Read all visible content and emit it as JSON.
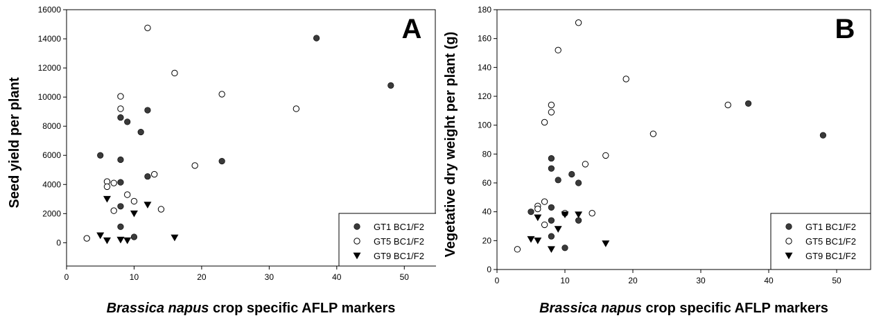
{
  "chart_data": [
    {
      "type": "scatter",
      "panel_letter": "A",
      "xlabel_italic": "Brassica napus",
      "xlabel_rest": " crop specific AFLP markers",
      "ylabel": "Seed yield per plant",
      "xlim": [
        0,
        55
      ],
      "ylim": [
        -1600,
        16000
      ],
      "xticks": [
        0,
        10,
        20,
        30,
        40,
        50
      ],
      "yticks": [
        0,
        2000,
        4000,
        6000,
        8000,
        10000,
        12000,
        14000,
        16000
      ],
      "grid": false,
      "legend_position": "bottom-right",
      "series": [
        {
          "name": "GT1 BC1/F2",
          "marker": "filled-circle",
          "points": [
            [
              5,
              6000
            ],
            [
              8,
              8600
            ],
            [
              8,
              5700
            ],
            [
              8,
              4150
            ],
            [
              8,
              2500
            ],
            [
              8,
              1100
            ],
            [
              9,
              8300
            ],
            [
              10,
              400
            ],
            [
              11,
              7600
            ],
            [
              12,
              9100
            ],
            [
              12,
              4550
            ],
            [
              23,
              5600
            ],
            [
              37,
              14050
            ],
            [
              48,
              10800
            ]
          ]
        },
        {
          "name": "GT5 BC1/F2",
          "marker": "open-circle",
          "points": [
            [
              3,
              300
            ],
            [
              6,
              4200
            ],
            [
              6,
              3850
            ],
            [
              7,
              4100
            ],
            [
              7,
              2200
            ],
            [
              8,
              10050
            ],
            [
              8,
              9200
            ],
            [
              9,
              3300
            ],
            [
              10,
              2850
            ],
            [
              12,
              14750
            ],
            [
              13,
              4700
            ],
            [
              14,
              2300
            ],
            [
              16,
              11650
            ],
            [
              19,
              5300
            ],
            [
              23,
              10200
            ],
            [
              34,
              9200
            ]
          ]
        },
        {
          "name": "GT9 BC1/F2",
          "marker": "filled-triangle-down",
          "points": [
            [
              5,
              500
            ],
            [
              6,
              3000
            ],
            [
              6,
              150
            ],
            [
              8,
              200
            ],
            [
              9,
              150
            ],
            [
              10,
              2000
            ],
            [
              12,
              2600
            ],
            [
              16,
              350
            ]
          ]
        }
      ]
    },
    {
      "type": "scatter",
      "panel_letter": "B",
      "xlabel_italic": "Brassica napus",
      "xlabel_rest": " crop specific AFLP markers",
      "ylabel": "Vegetative dry weight per plant (g)",
      "xlim": [
        0,
        55
      ],
      "ylim": [
        0,
        180
      ],
      "xticks": [
        0,
        10,
        20,
        30,
        40,
        50
      ],
      "yticks": [
        0,
        20,
        40,
        60,
        80,
        100,
        120,
        140,
        160,
        180
      ],
      "grid": false,
      "legend_position": "bottom-right",
      "series": [
        {
          "name": "GT1 BC1/F2",
          "marker": "filled-circle",
          "points": [
            [
              5,
              40
            ],
            [
              8,
              77
            ],
            [
              8,
              70
            ],
            [
              8,
              43
            ],
            [
              8,
              34
            ],
            [
              8,
              23
            ],
            [
              9,
              62
            ],
            [
              10,
              15
            ],
            [
              11,
              66
            ],
            [
              12,
              60
            ],
            [
              12,
              34
            ],
            [
              37,
              115
            ],
            [
              48,
              93
            ]
          ]
        },
        {
          "name": "GT5 BC1/F2",
          "marker": "open-circle",
          "points": [
            [
              3,
              14
            ],
            [
              6,
              44
            ],
            [
              6,
              42
            ],
            [
              7,
              47
            ],
            [
              7,
              31
            ],
            [
              7,
              102
            ],
            [
              8,
              114
            ],
            [
              8,
              109
            ],
            [
              9,
              152
            ],
            [
              10,
              39
            ],
            [
              12,
              171
            ],
            [
              13,
              73
            ],
            [
              14,
              39
            ],
            [
              16,
              79
            ],
            [
              19,
              132
            ],
            [
              23,
              94
            ],
            [
              34,
              114
            ]
          ]
        },
        {
          "name": "GT9 BC1/F2",
          "marker": "filled-triangle-down",
          "points": [
            [
              5,
              21
            ],
            [
              6,
              36
            ],
            [
              6,
              20
            ],
            [
              8,
              14
            ],
            [
              9,
              28
            ],
            [
              10,
              38
            ],
            [
              12,
              38
            ],
            [
              16,
              18
            ]
          ]
        }
      ]
    }
  ]
}
